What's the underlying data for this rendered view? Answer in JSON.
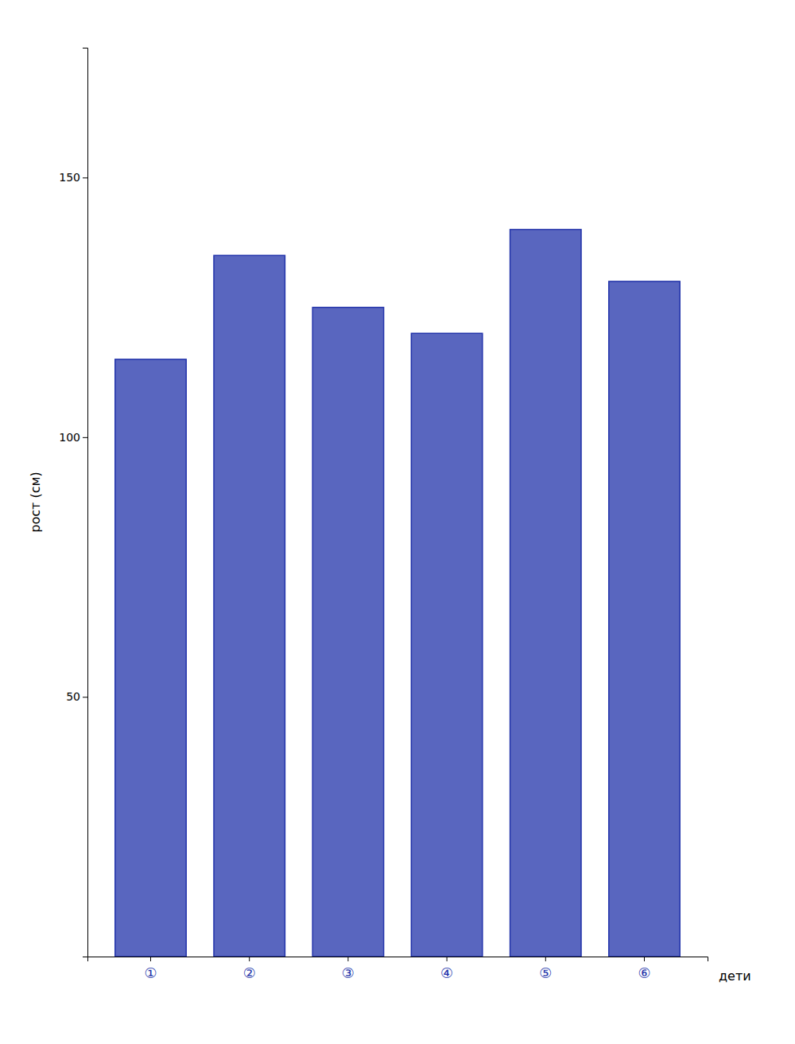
{
  "chart_data": {
    "type": "bar",
    "categories": [
      "①",
      "②",
      "③",
      "④",
      "⑤",
      "⑥"
    ],
    "values": [
      115,
      135,
      125,
      120,
      140,
      130
    ],
    "color": "#2233aa",
    "x_label": "дети",
    "y_label": "рост (см)",
    "ylim": [
      0,
      175
    ],
    "yticks": [
      50,
      100,
      150
    ],
    "grid": false
  }
}
